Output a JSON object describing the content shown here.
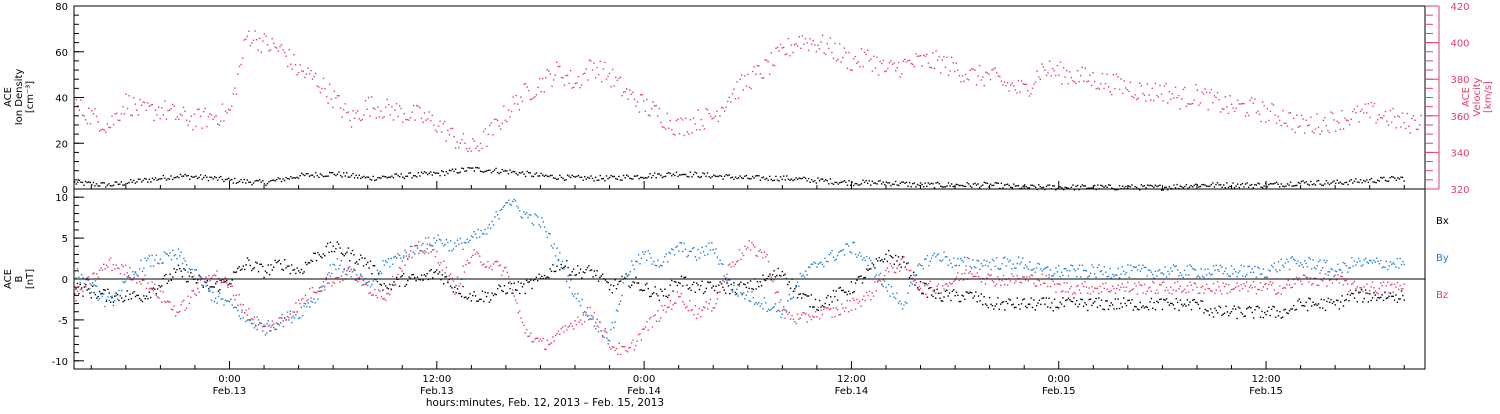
{
  "colors": {
    "axis": "#000000",
    "density": "#000000",
    "velocity": "#e0406a",
    "bx": "#000000",
    "by": "#1e7fd8",
    "bz": "#e0406a"
  },
  "chart_data": [
    {
      "type": "scatter",
      "panel": "top",
      "ylabel_left": [
        "ACE",
        "Ion Density",
        "[cm⁻³]"
      ],
      "ylabel_right": [
        "ACE",
        "Velocity",
        "[km/s]"
      ],
      "ylim_left": [
        0,
        80
      ],
      "ylim_right": [
        320,
        420
      ],
      "yticks_left": [
        0,
        20,
        40,
        60,
        80
      ],
      "yticks_right": [
        320,
        340,
        360,
        380,
        400,
        420
      ],
      "x_unit": "hours since 2013-02-12 00:00",
      "xlim": [
        15,
        93.2
      ],
      "series": [
        {
          "axis": "left",
          "color_key": "density",
          "x": [
            15,
            17,
            19,
            21,
            23,
            24,
            26,
            28,
            30,
            32,
            34,
            36,
            38,
            40,
            42,
            44,
            46,
            48,
            50,
            52,
            54,
            56,
            58,
            60,
            62,
            64,
            66,
            68,
            70,
            72,
            74,
            76,
            78,
            80,
            82,
            84,
            86,
            88,
            90,
            92
          ],
          "y": [
            3,
            2,
            4,
            6,
            5,
            4,
            3,
            6,
            7,
            5,
            6,
            7,
            9,
            8,
            6,
            5,
            5,
            6,
            7,
            6,
            5,
            5,
            4,
            3,
            3,
            2,
            2,
            2,
            1,
            1,
            1,
            1,
            1,
            2,
            2,
            2,
            3,
            3,
            4,
            5
          ]
        },
        {
          "axis": "right",
          "color_key": "velocity",
          "x": [
            15,
            16,
            17,
            18,
            19,
            20,
            21,
            22,
            23,
            24,
            25,
            26,
            27,
            28,
            29,
            30,
            31,
            32,
            33,
            34,
            35,
            36,
            37,
            38,
            39,
            40,
            41,
            42,
            43,
            44,
            45,
            46,
            47,
            48,
            49,
            50,
            51,
            52,
            53,
            54,
            55,
            56,
            57,
            58,
            59,
            60,
            61,
            62,
            63,
            64,
            65,
            66,
            67,
            68,
            69,
            70,
            71,
            72,
            73,
            74,
            75,
            76,
            77,
            78,
            79,
            80,
            81,
            82,
            83,
            84,
            85,
            86,
            87,
            88,
            89,
            90,
            91,
            92,
            93
          ],
          "y": [
            366,
            360,
            355,
            368,
            362,
            364,
            360,
            358,
            360,
            362,
            405,
            400,
            396,
            385,
            380,
            370,
            358,
            366,
            364,
            362,
            360,
            356,
            348,
            342,
            350,
            362,
            372,
            378,
            385,
            378,
            388,
            382,
            372,
            366,
            360,
            354,
            358,
            360,
            372,
            380,
            386,
            395,
            402,
            400,
            396,
            390,
            392,
            385,
            388,
            390,
            390,
            386,
            382,
            382,
            377,
            374,
            386,
            384,
            382,
            380,
            378,
            376,
            373,
            374,
            370,
            372,
            368,
            365,
            365,
            362,
            360,
            355,
            356,
            358,
            360,
            362,
            360,
            356,
            358
          ]
        }
      ]
    },
    {
      "type": "scatter",
      "panel": "bottom",
      "ylabel": [
        "ACE",
        "B",
        "[nT]"
      ],
      "ylim": [
        -11,
        11
      ],
      "yticks": [
        -10,
        -5,
        0,
        5,
        10
      ],
      "xlim": [
        15,
        93.2
      ],
      "legend": [
        "Bx",
        "By",
        "Bz"
      ],
      "series": [
        {
          "name": "Bx",
          "color_key": "bx",
          "x": [
            15,
            17,
            19,
            21,
            23,
            24,
            25,
            26,
            27,
            28,
            29,
            30,
            31,
            32,
            33,
            34,
            35,
            36,
            37,
            38,
            39,
            40,
            41,
            42,
            43,
            44,
            45,
            46,
            47,
            48,
            49,
            50,
            51,
            52,
            53,
            54,
            55,
            56,
            57,
            58,
            59,
            60,
            61,
            62,
            63,
            64,
            65,
            66,
            67,
            68,
            69,
            70,
            71,
            72,
            73,
            74,
            75,
            76,
            77,
            78,
            79,
            80,
            81,
            82,
            83,
            84,
            85,
            86,
            87,
            88,
            89,
            90,
            91,
            92
          ],
          "y": [
            -1,
            -2,
            -2,
            1,
            -1,
            0,
            2,
            1,
            2,
            1,
            3,
            4,
            3,
            2,
            -1,
            0,
            0,
            1,
            -1,
            -2,
            -2,
            -1,
            -1,
            0,
            2,
            1,
            1,
            -1,
            0,
            -1,
            -2,
            0,
            -1,
            -1,
            -1,
            -1,
            0,
            1,
            -2,
            -3,
            -2,
            -1,
            1,
            3,
            2,
            -1,
            -2,
            -2,
            -2,
            -3,
            -3,
            -3,
            -3,
            -3,
            -3,
            -3,
            -3,
            -3,
            -3,
            -3,
            -3,
            -3,
            -4,
            -4,
            -4,
            -4,
            -4,
            -3,
            -3,
            -3,
            -2,
            -2,
            -2,
            -2
          ]
        },
        {
          "name": "By",
          "color_key": "by",
          "x": [
            15,
            17,
            19,
            21,
            23,
            24,
            25,
            26,
            27,
            28,
            29,
            30,
            31,
            32,
            33,
            34,
            35,
            36,
            37,
            38,
            39,
            40,
            41,
            42,
            43,
            44,
            45,
            46,
            47,
            48,
            49,
            50,
            51,
            52,
            53,
            54,
            55,
            56,
            57,
            58,
            59,
            60,
            61,
            62,
            63,
            64,
            65,
            66,
            67,
            68,
            69,
            70,
            71,
            72,
            73,
            74,
            75,
            76,
            77,
            78,
            79,
            80,
            81,
            82,
            83,
            84,
            85,
            86,
            87,
            88,
            89,
            90,
            91,
            92
          ],
          "y": [
            1,
            -3,
            2,
            3,
            -2,
            -3,
            -5,
            -6,
            -5,
            -4,
            -2,
            2,
            1,
            -1,
            2,
            3,
            4,
            5,
            4,
            5,
            6,
            10,
            8,
            7,
            3,
            -2,
            -5,
            -7,
            1,
            3,
            2,
            4,
            3,
            4,
            -1,
            -2,
            -3,
            -4,
            0,
            2,
            3,
            4,
            2,
            -1,
            -3,
            2,
            3,
            2,
            2,
            2,
            2,
            2,
            1,
            1,
            1,
            1,
            1,
            1,
            1,
            1,
            1,
            1,
            1,
            1,
            1,
            1,
            2,
            2,
            2,
            1,
            2,
            2,
            2,
            2
          ]
        },
        {
          "name": "Bz",
          "color_key": "bz",
          "x": [
            15,
            17,
            19,
            21,
            23,
            24,
            25,
            26,
            27,
            28,
            29,
            30,
            31,
            32,
            33,
            34,
            35,
            36,
            37,
            38,
            39,
            40,
            41,
            42,
            43,
            44,
            45,
            46,
            47,
            48,
            49,
            50,
            51,
            52,
            53,
            54,
            55,
            56,
            57,
            58,
            59,
            60,
            61,
            62,
            63,
            64,
            65,
            66,
            67,
            68,
            69,
            70,
            71,
            72,
            73,
            74,
            75,
            76,
            77,
            78,
            79,
            80,
            81,
            82,
            83,
            84,
            85,
            86,
            87,
            88,
            89,
            90,
            91,
            92
          ],
          "y": [
            -2,
            2,
            0,
            -4,
            1,
            -1,
            -4,
            -6,
            -5,
            -3,
            -1,
            0,
            1,
            -1,
            -2,
            2,
            4,
            3,
            -1,
            3,
            2,
            1,
            -6,
            -8,
            -7,
            -5,
            -4,
            -8,
            -9,
            -6,
            -4,
            -2,
            -4,
            -3,
            2,
            4,
            3,
            -4,
            -5,
            -4,
            -4,
            -3,
            -2,
            1,
            2,
            -1,
            -1,
            0,
            1,
            0,
            0,
            0,
            0,
            -1,
            -1,
            -1,
            -1,
            -1,
            -1,
            -1,
            -1,
            -1,
            -1,
            -1,
            -1,
            -1,
            -1,
            0,
            0,
            0,
            -1,
            -1,
            -1,
            -1
          ]
        }
      ]
    }
  ],
  "x_axis": {
    "ticks": [
      {
        "hours": 24,
        "time": "0:00",
        "date": "Feb.13"
      },
      {
        "hours": 36,
        "time": "12:00",
        "date": "Feb.13"
      },
      {
        "hours": 48,
        "time": "0:00",
        "date": "Feb.14"
      },
      {
        "hours": 60,
        "time": "12:00",
        "date": "Feb.14"
      },
      {
        "hours": 72,
        "time": "0:00",
        "date": "Feb.15"
      },
      {
        "hours": 84,
        "time": "12:00",
        "date": "Feb.15"
      }
    ],
    "label": "hours:minutes, Feb. 12, 2013 – Feb. 15, 2013"
  },
  "legend_labels": {
    "bx": "Bx",
    "by": "By",
    "bz": "Bz"
  }
}
